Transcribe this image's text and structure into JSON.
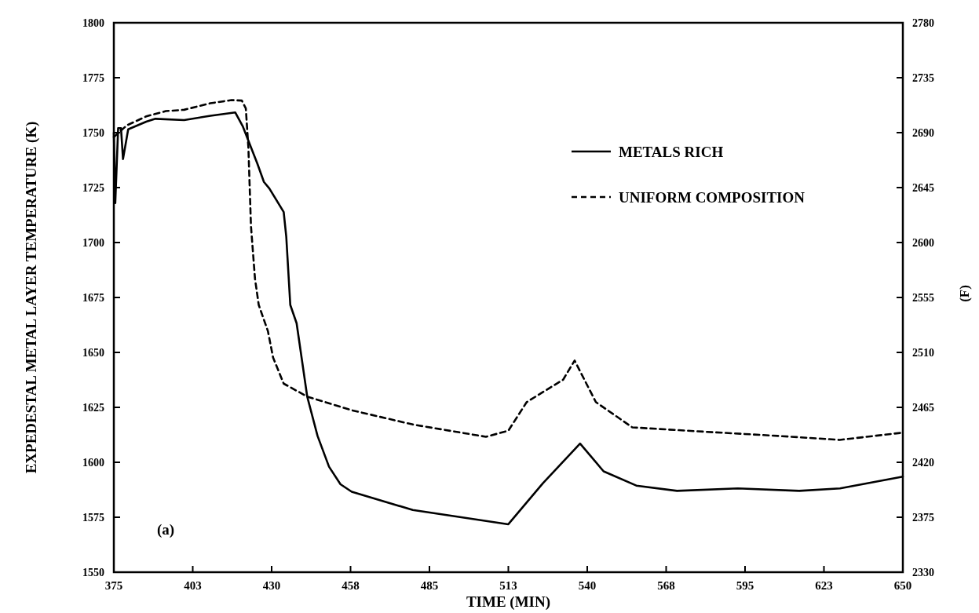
{
  "chart_data": {
    "type": "line",
    "xlabel": "TIME (MIN)",
    "ylabel": "EXPEDESTAL METAL LAYER TEMPERATURE (K)",
    "y2label": "(F)",
    "xlim": [
      375,
      650
    ],
    "xticks": [
      375,
      {
        "value": 402.5,
        "label": "403"
      },
      430,
      {
        "value": 457.5,
        "label": "458"
      },
      485,
      {
        "value": 512.5,
        "label": "513"
      },
      540,
      {
        "value": 567.5,
        "label": "568"
      },
      595,
      {
        "value": 622.5,
        "label": "623"
      },
      650
    ],
    "ylim": [
      1550,
      1800
    ],
    "yticks": [
      1550,
      1575,
      1600,
      1625,
      1650,
      1675,
      1700,
      1725,
      1750,
      1775,
      1800
    ],
    "y2lim": [
      2330,
      2780
    ],
    "y2ticks": [
      2330,
      2375,
      2420,
      2465,
      2510,
      2555,
      2600,
      2645,
      2690,
      2735,
      2780
    ],
    "legend": "top right",
    "grid": false,
    "annotations": [
      "(a)"
    ],
    "series": [
      {
        "name": "METALS RICH",
        "color": "#000000",
        "line_style": "solid",
        "x": [
          375,
          375.5,
          376.5,
          377.5,
          378.2,
          380,
          386.3,
          389.5,
          399.5,
          408.7,
          417.3,
          420,
          425,
          427.3,
          429.2,
          434.2,
          435.1,
          436.5,
          438.7,
          442.4,
          446,
          450,
          454,
          457.9,
          479.2,
          512.5,
          524.5,
          537.5,
          545.7,
          557.1,
          571.3,
          592.5,
          613.9,
          628.1,
          650
        ],
        "values": [
          1750,
          1718,
          1752,
          1752,
          1738,
          1751.5,
          1755,
          1756.3,
          1755.7,
          1757.7,
          1759.2,
          1752.7,
          1736,
          1727.6,
          1724.6,
          1713.9,
          1702.6,
          1671.6,
          1663.3,
          1629.9,
          1612,
          1598,
          1590,
          1586.6,
          1578.3,
          1571.8,
          1590.4,
          1608.5,
          1595.9,
          1589.4,
          1587,
          1588.1,
          1587,
          1588.1,
          1593.5
        ]
      },
      {
        "name": "UNIFORM COMPOSITION",
        "color": "#000000",
        "line_style": "dashed",
        "x": [
          375,
          379.5,
          386.3,
          393.1,
          399.5,
          408.7,
          416,
          419.6,
          421,
          421.9,
          422.8,
          424.2,
          425.5,
          428.7,
          430.5,
          434.2,
          442.4,
          457.9,
          479.2,
          504.7,
          512.5,
          518.9,
          531.6,
          535.6,
          543,
          555.7,
          578.4,
          606.7,
          628,
          650
        ],
        "values": [
          1748,
          1753.3,
          1757.4,
          1759.8,
          1760.4,
          1763.4,
          1764.8,
          1764.6,
          1761,
          1743.1,
          1707.4,
          1683.5,
          1671.6,
          1659.7,
          1647.7,
          1635.8,
          1629.9,
          1623.7,
          1617.2,
          1611.6,
          1614.4,
          1627.4,
          1637.6,
          1646.3,
          1627.4,
          1615.9,
          1614.1,
          1612,
          1610.2,
          1613.5
        ]
      }
    ]
  }
}
